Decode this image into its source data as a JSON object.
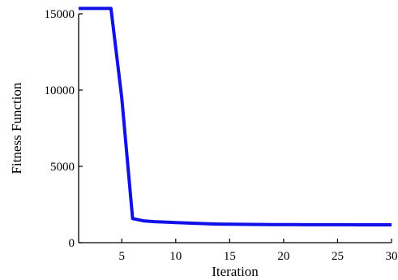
{
  "chart_data": {
    "type": "line",
    "title": "",
    "xlabel": "Iteration",
    "ylabel": "Fitness Function",
    "xlim": [
      1,
      30
    ],
    "ylim": [
      0,
      15500
    ],
    "xticks": [
      5,
      10,
      15,
      20,
      25,
      30
    ],
    "yticks": [
      0,
      5000,
      10000,
      15000
    ],
    "grid": false,
    "legend": "none",
    "series": [
      {
        "color": "#1010e8",
        "x": [
          1,
          2,
          3,
          4,
          5,
          6,
          7,
          8,
          9,
          10,
          11,
          12,
          13,
          14,
          15,
          16,
          17,
          18,
          19,
          20,
          21,
          22,
          23,
          24,
          25,
          26,
          27,
          28,
          29,
          30
        ],
        "y": [
          15350,
          15350,
          15350,
          15350,
          9500,
          1580,
          1430,
          1380,
          1350,
          1320,
          1290,
          1260,
          1240,
          1220,
          1210,
          1200,
          1195,
          1190,
          1185,
          1180,
          1180,
          1178,
          1176,
          1175,
          1174,
          1173,
          1172,
          1171,
          1170,
          1170
        ]
      }
    ]
  }
}
